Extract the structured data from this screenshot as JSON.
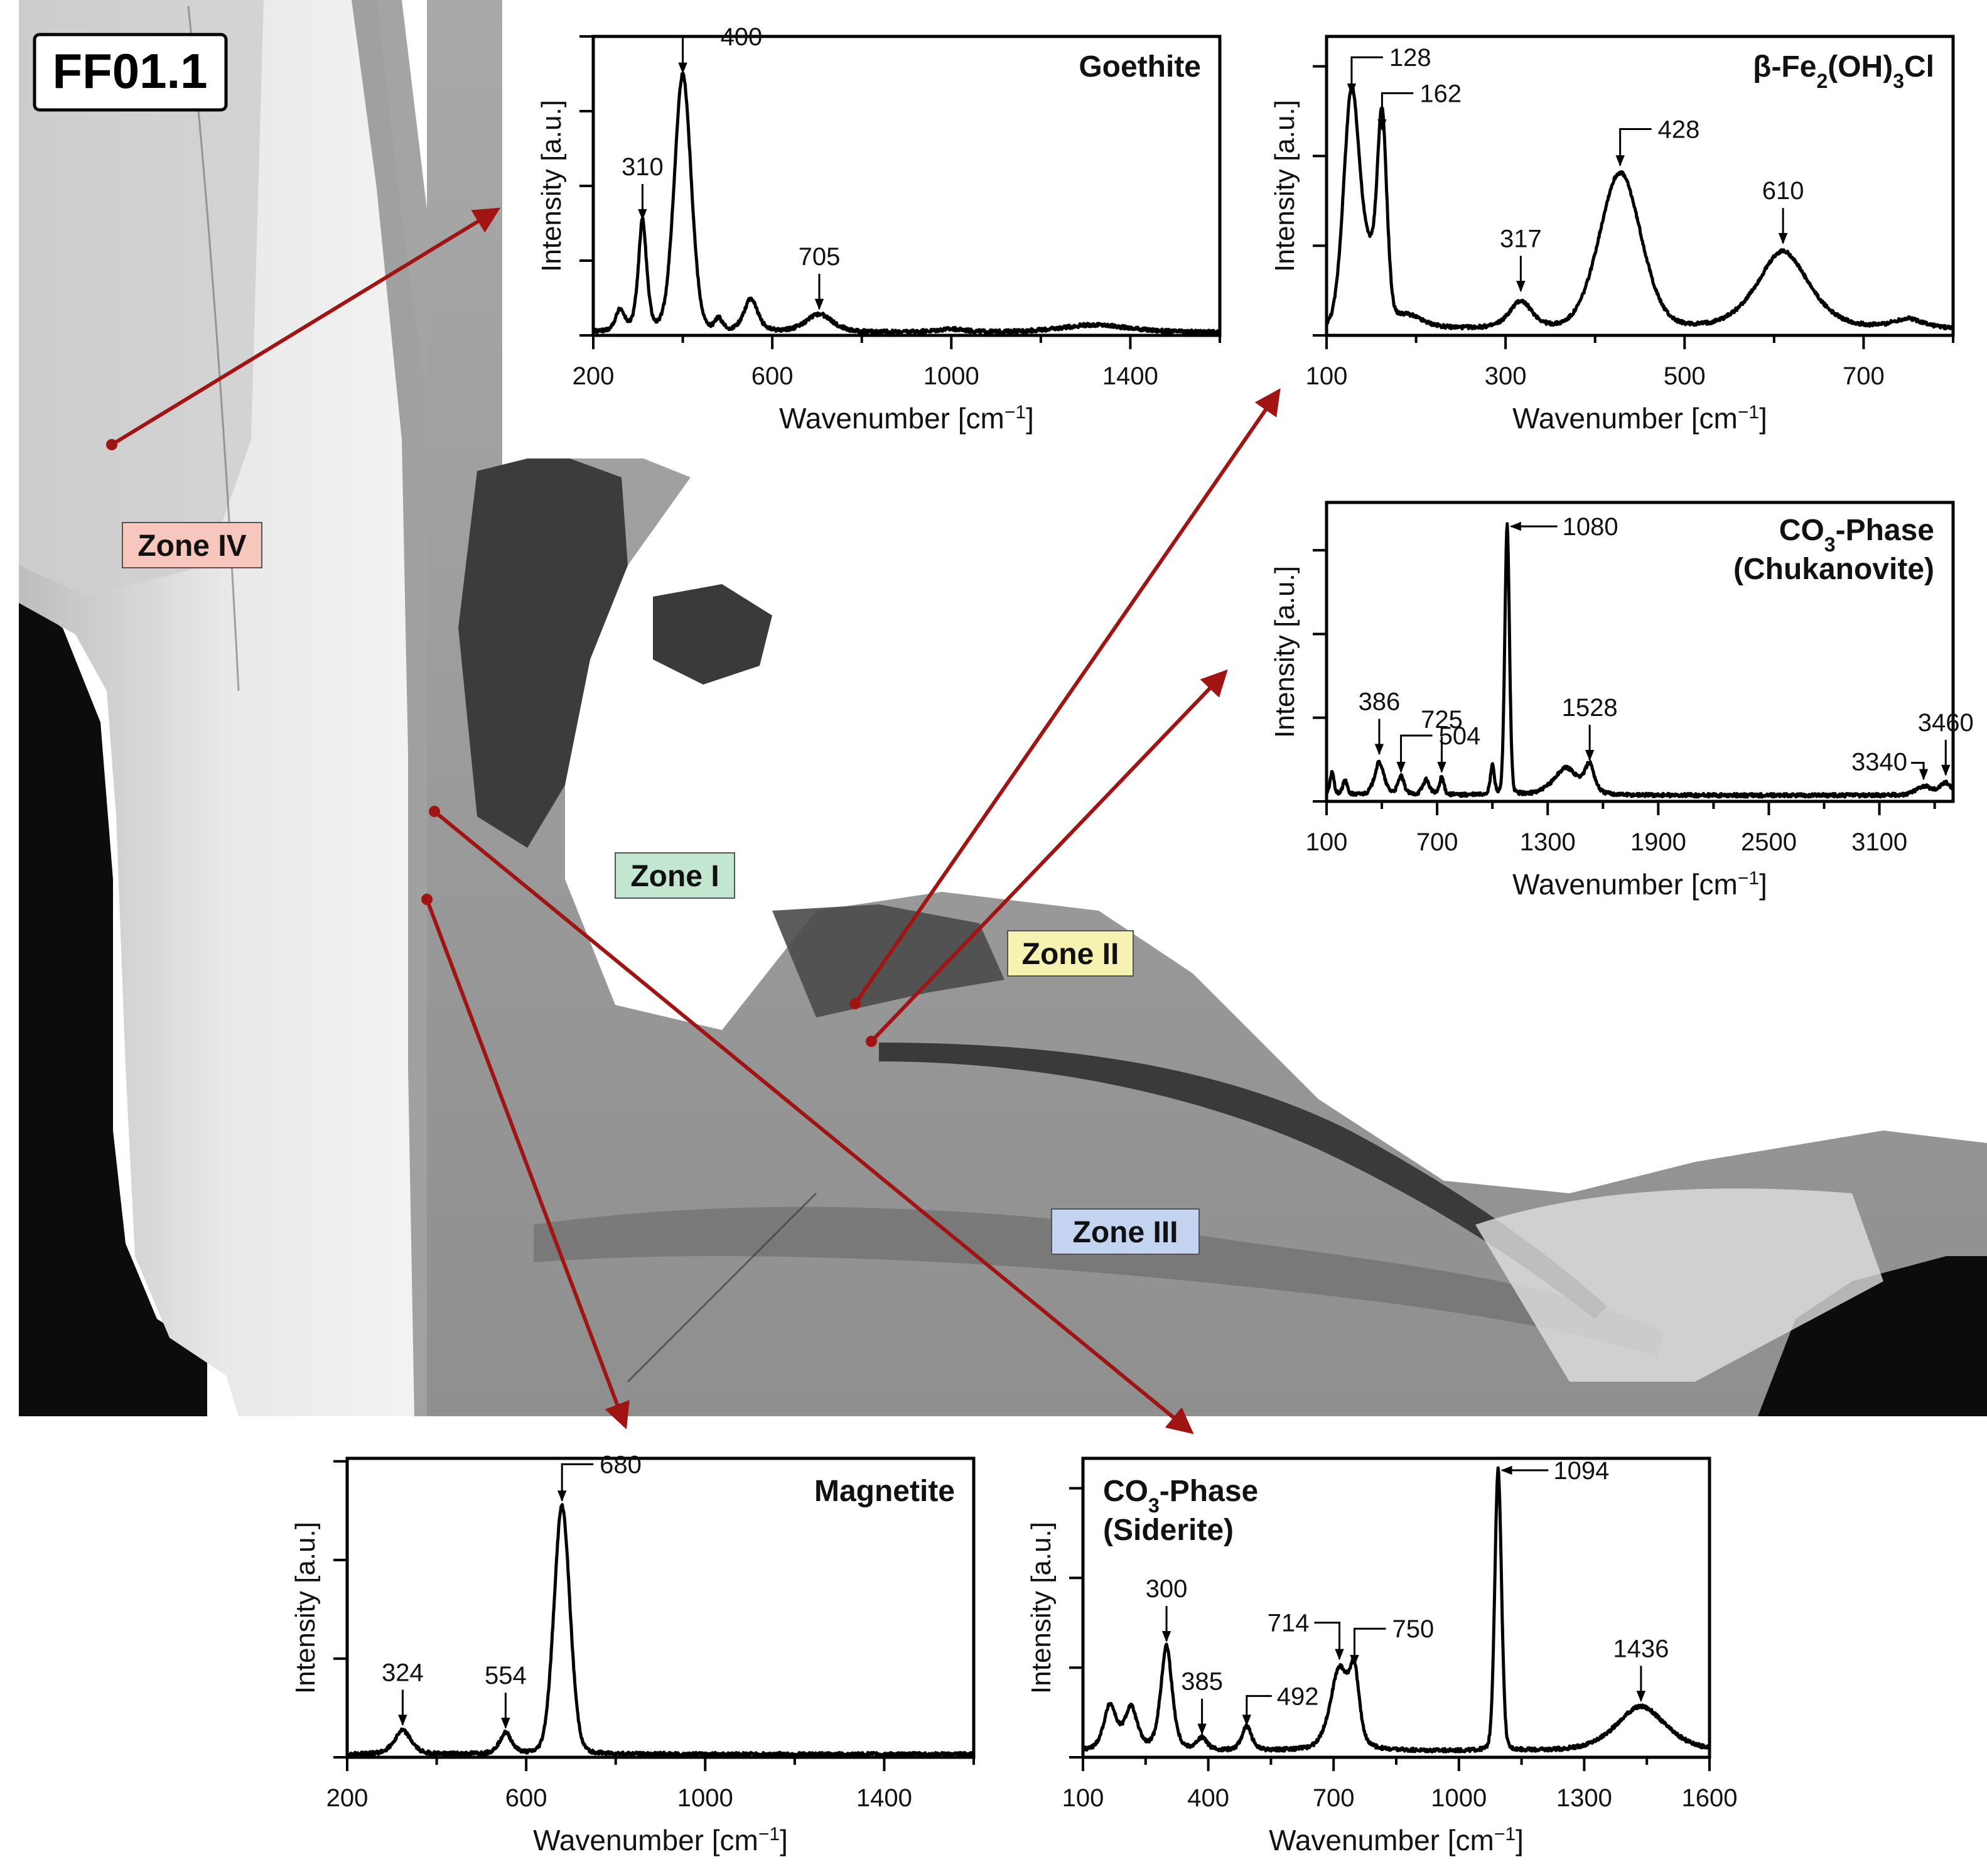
{
  "figure": {
    "sample_label": "FF01.1",
    "zones": [
      {
        "id": "zone-iv",
        "label": "Zone IV",
        "color": "#f7c6bc"
      },
      {
        "id": "zone-i",
        "label": "Zone I",
        "color": "#c2e6cf"
      },
      {
        "id": "zone-ii",
        "label": "Zone II",
        "color": "#f6f2b2"
      },
      {
        "id": "zone-iii",
        "label": "Zone III",
        "color": "#c4d3ef"
      }
    ],
    "connector_color": "#a01414"
  },
  "chart_data": [
    {
      "id": "goethite",
      "type": "line",
      "title": "Goethite",
      "title_sub": "",
      "title_post": "",
      "title_line2": "",
      "xlabel": "Wavenumber [cm",
      "xlabel_sup": "−1",
      "xlabel_close": "]",
      "ylabel": "Intensity [a.u.]",
      "xlim": [
        200,
        1600
      ],
      "ylim": [
        0,
        1.0
      ],
      "xticks": [
        200,
        600,
        1000,
        1400
      ],
      "xtick_minor": 200,
      "yticks": [
        0,
        0.25,
        0.5,
        0.75,
        1.0
      ],
      "baseline": 0.01,
      "peaks": [
        {
          "x": 260,
          "h": 0.07,
          "w": 12
        },
        {
          "x": 310,
          "h": 0.37,
          "w": 11
        },
        {
          "x": 400,
          "h": 0.86,
          "w": 21
        },
        {
          "x": 480,
          "h": 0.04,
          "w": 10
        },
        {
          "x": 552,
          "h": 0.11,
          "w": 18
        },
        {
          "x": 705,
          "h": 0.06,
          "w": 35
        },
        {
          "x": 1000,
          "h": 0.01,
          "w": 40
        },
        {
          "x": 1320,
          "h": 0.025,
          "w": 90
        }
      ],
      "annotations": [
        {
          "label": "310",
          "x": 310,
          "y": 0.38,
          "style": "down"
        },
        {
          "label": "400",
          "x": 400,
          "y": 0.87,
          "style": "down-elbow"
        },
        {
          "label": "705",
          "x": 705,
          "y": 0.08,
          "style": "down"
        }
      ]
    },
    {
      "id": "beta-fe",
      "type": "line",
      "title": "β-Fe",
      "title_sub": "2",
      "title_post": "(OH)",
      "title_sub2": "3",
      "title_post2": "Cl",
      "title_line2": "",
      "xlabel": "Wavenumber [cm",
      "xlabel_sup": "−1",
      "xlabel_close": "]",
      "ylabel": "Intensity [a.u.]",
      "xlim": [
        100,
        800
      ],
      "ylim": [
        0,
        1.0
      ],
      "xticks": [
        100,
        300,
        500,
        700
      ],
      "xtick_minor": 100,
      "yticks": [
        0,
        0.3,
        0.6,
        0.9
      ],
      "baseline": 0.02,
      "peaks": [
        {
          "x": 128,
          "h": 0.78,
          "w": 10
        },
        {
          "x": 148,
          "h": 0.2,
          "w": 10
        },
        {
          "x": 162,
          "h": 0.66,
          "w": 6
        },
        {
          "x": 190,
          "h": 0.04,
          "w": 20
        },
        {
          "x": 317,
          "h": 0.09,
          "w": 15
        },
        {
          "x": 428,
          "h": 0.52,
          "w": 26
        },
        {
          "x": 610,
          "h": 0.26,
          "w": 34
        },
        {
          "x": 750,
          "h": 0.03,
          "w": 20
        }
      ],
      "annotations": [
        {
          "label": "128",
          "x": 128,
          "y": 0.8,
          "style": "down-elbow"
        },
        {
          "label": "162",
          "x": 162,
          "y": 0.68,
          "style": "down-elbow"
        },
        {
          "label": "317",
          "x": 317,
          "y": 0.14,
          "style": "down"
        },
        {
          "label": "428",
          "x": 428,
          "y": 0.56,
          "style": "down-elbow"
        },
        {
          "label": "610",
          "x": 610,
          "y": 0.3,
          "style": "down"
        }
      ]
    },
    {
      "id": "chukanovite",
      "type": "line",
      "title": "CO",
      "title_sub": "3",
      "title_post": "-Phase",
      "title_line2": "(Chukanovite)",
      "xlabel": "Wavenumber [cm",
      "xlabel_sup": "−1",
      "xlabel_close": "]",
      "ylabel": "Intensity [a.u.]",
      "xlim": [
        100,
        3500
      ],
      "ylim": [
        0,
        1.0
      ],
      "xticks": [
        100,
        700,
        1300,
        1900,
        2500,
        3100
      ],
      "xtick_minor": 300,
      "yticks": [
        0,
        0.28,
        0.56,
        0.84
      ],
      "baseline": 0.02,
      "peaks": [
        {
          "x": 130,
          "h": 0.08,
          "w": 12
        },
        {
          "x": 200,
          "h": 0.05,
          "w": 14
        },
        {
          "x": 386,
          "h": 0.11,
          "w": 30
        },
        {
          "x": 504,
          "h": 0.06,
          "w": 20
        },
        {
          "x": 640,
          "h": 0.05,
          "w": 22
        },
        {
          "x": 725,
          "h": 0.06,
          "w": 14
        },
        {
          "x": 1000,
          "h": 0.1,
          "w": 12
        },
        {
          "x": 1080,
          "h": 0.9,
          "w": 14
        },
        {
          "x": 1400,
          "h": 0.09,
          "w": 80
        },
        {
          "x": 1528,
          "h": 0.09,
          "w": 30
        },
        {
          "x": 3340,
          "h": 0.03,
          "w": 50
        },
        {
          "x": 3460,
          "h": 0.04,
          "w": 40
        }
      ],
      "annotations": [
        {
          "label": "386",
          "x": 386,
          "y": 0.15,
          "style": "down"
        },
        {
          "label": "504",
          "x": 504,
          "y": 0.09,
          "style": "down-elbow"
        },
        {
          "label": "725",
          "x": 725,
          "y": 0.09,
          "style": "down"
        },
        {
          "label": "1080",
          "x": 1080,
          "y": 0.92,
          "style": "left"
        },
        {
          "label": "1528",
          "x": 1528,
          "y": 0.13,
          "style": "down"
        },
        {
          "label": "3340",
          "x": 3340,
          "y": 0.07,
          "style": "elbow-right"
        },
        {
          "label": "3460",
          "x": 3460,
          "y": 0.08,
          "style": "down"
        }
      ]
    },
    {
      "id": "magnetite",
      "type": "line",
      "title": "Magnetite",
      "title_sub": "",
      "title_post": "",
      "title_line2": "",
      "xlabel": "Wavenumber [cm",
      "xlabel_sup": "−1",
      "xlabel_close": "]",
      "ylabel": "Intensity [a.u.]",
      "xlim": [
        200,
        1600
      ],
      "ylim": [
        0,
        1.0
      ],
      "xticks": [
        200,
        600,
        1000,
        1400
      ],
      "xtick_minor": 200,
      "yticks": [
        0,
        0.33,
        0.66,
        0.99
      ],
      "baseline": 0.01,
      "peaks": [
        {
          "x": 324,
          "h": 0.08,
          "w": 22
        },
        {
          "x": 554,
          "h": 0.07,
          "w": 16
        },
        {
          "x": 680,
          "h": 0.83,
          "w": 20
        }
      ],
      "annotations": [
        {
          "label": "324",
          "x": 324,
          "y": 0.1,
          "style": "down"
        },
        {
          "label": "554",
          "x": 554,
          "y": 0.09,
          "style": "down"
        },
        {
          "label": "680",
          "x": 680,
          "y": 0.85,
          "style": "down-elbow"
        }
      ]
    },
    {
      "id": "siderite",
      "type": "line",
      "title": "CO",
      "title_sub": "3",
      "title_post": "-Phase",
      "title_line2": "(Siderite)",
      "xlabel": "Wavenumber [cm",
      "xlabel_sup": "−1",
      "xlabel_close": "]",
      "ylabel": "Intensity [a.u.]",
      "xlim": [
        100,
        1600
      ],
      "ylim": [
        0,
        1.0
      ],
      "xticks": [
        100,
        400,
        700,
        1000,
        1300,
        1600
      ],
      "xtick_minor": 150,
      "yticks": [
        0,
        0.3,
        0.6,
        0.9
      ],
      "baseline": 0.02,
      "peaks": [
        {
          "x": 165,
          "h": 0.15,
          "w": 18
        },
        {
          "x": 215,
          "h": 0.14,
          "w": 18
        },
        {
          "x": 300,
          "h": 0.35,
          "w": 16
        },
        {
          "x": 385,
          "h": 0.04,
          "w": 14
        },
        {
          "x": 492,
          "h": 0.08,
          "w": 14
        },
        {
          "x": 714,
          "h": 0.27,
          "w": 26
        },
        {
          "x": 750,
          "h": 0.22,
          "w": 14
        },
        {
          "x": 1094,
          "h": 0.94,
          "w": 9
        },
        {
          "x": 1436,
          "h": 0.15,
          "w": 70
        }
      ],
      "annotations": [
        {
          "label": "300",
          "x": 300,
          "y": 0.38,
          "style": "down"
        },
        {
          "label": "385",
          "x": 385,
          "y": 0.07,
          "style": "down"
        },
        {
          "label": "492",
          "x": 492,
          "y": 0.1,
          "style": "elbow-down-right"
        },
        {
          "label": "714",
          "x": 714,
          "y": 0.32,
          "style": "down-elbow-left"
        },
        {
          "label": "750",
          "x": 750,
          "y": 0.3,
          "style": "down-elbow"
        },
        {
          "label": "1094",
          "x": 1094,
          "y": 0.96,
          "style": "left"
        },
        {
          "label": "1436",
          "x": 1436,
          "y": 0.18,
          "style": "down"
        }
      ]
    }
  ]
}
